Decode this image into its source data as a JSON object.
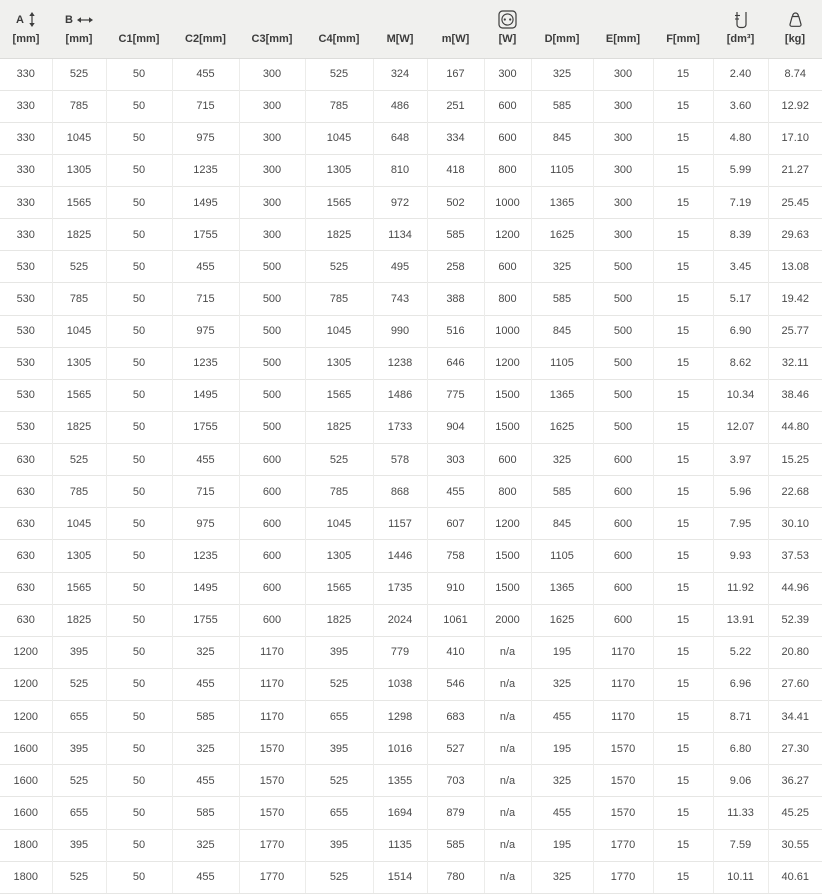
{
  "colors": {
    "header_bg": "#f0f0ee",
    "row_bg": "#ffffff",
    "grid_line": "#e6e6e4",
    "header_text": "#3c3c3c",
    "body_text": "#4a4a4a"
  },
  "header": {
    "cols": [
      {
        "letter": "A",
        "unit": "[mm]",
        "icon": "vertical-double-arrow-icon"
      },
      {
        "letter": "B",
        "unit": "[mm]",
        "icon": "horizontal-double-arrow-icon"
      },
      {
        "label": "C1[mm]"
      },
      {
        "label": "C2[mm]"
      },
      {
        "label": "C3[mm]"
      },
      {
        "label": "C4[mm]"
      },
      {
        "label": "M[W]"
      },
      {
        "label": "m[W]"
      },
      {
        "unit": "[W]",
        "icon": "power-socket-icon"
      },
      {
        "label": "D[mm]"
      },
      {
        "label": "E[mm]"
      },
      {
        "label": "F[mm]"
      },
      {
        "unit": "[dm³]",
        "icon": "measuring-container-icon"
      },
      {
        "unit": "[kg]",
        "icon": "weight-bag-icon"
      }
    ]
  },
  "chart_data": {
    "type": "table",
    "columns": [
      "A [mm]",
      "B [mm]",
      "C1 [mm]",
      "C2 [mm]",
      "C3 [mm]",
      "C4 [mm]",
      "M [W]",
      "m [W]",
      "socket [W]",
      "D [mm]",
      "E [mm]",
      "F [mm]",
      "volume [dm³]",
      "weight [kg]"
    ],
    "rows": [
      [
        "330",
        "525",
        "50",
        "455",
        "300",
        "525",
        "324",
        "167",
        "300",
        "325",
        "300",
        "15",
        "2.40",
        "8.74"
      ],
      [
        "330",
        "785",
        "50",
        "715",
        "300",
        "785",
        "486",
        "251",
        "600",
        "585",
        "300",
        "15",
        "3.60",
        "12.92"
      ],
      [
        "330",
        "1045",
        "50",
        "975",
        "300",
        "1045",
        "648",
        "334",
        "600",
        "845",
        "300",
        "15",
        "4.80",
        "17.10"
      ],
      [
        "330",
        "1305",
        "50",
        "1235",
        "300",
        "1305",
        "810",
        "418",
        "800",
        "1105",
        "300",
        "15",
        "5.99",
        "21.27"
      ],
      [
        "330",
        "1565",
        "50",
        "1495",
        "300",
        "1565",
        "972",
        "502",
        "1000",
        "1365",
        "300",
        "15",
        "7.19",
        "25.45"
      ],
      [
        "330",
        "1825",
        "50",
        "1755",
        "300",
        "1825",
        "1134",
        "585",
        "1200",
        "1625",
        "300",
        "15",
        "8.39",
        "29.63"
      ],
      [
        "530",
        "525",
        "50",
        "455",
        "500",
        "525",
        "495",
        "258",
        "600",
        "325",
        "500",
        "15",
        "3.45",
        "13.08"
      ],
      [
        "530",
        "785",
        "50",
        "715",
        "500",
        "785",
        "743",
        "388",
        "800",
        "585",
        "500",
        "15",
        "5.17",
        "19.42"
      ],
      [
        "530",
        "1045",
        "50",
        "975",
        "500",
        "1045",
        "990",
        "516",
        "1000",
        "845",
        "500",
        "15",
        "6.90",
        "25.77"
      ],
      [
        "530",
        "1305",
        "50",
        "1235",
        "500",
        "1305",
        "1238",
        "646",
        "1200",
        "1105",
        "500",
        "15",
        "8.62",
        "32.11"
      ],
      [
        "530",
        "1565",
        "50",
        "1495",
        "500",
        "1565",
        "1486",
        "775",
        "1500",
        "1365",
        "500",
        "15",
        "10.34",
        "38.46"
      ],
      [
        "530",
        "1825",
        "50",
        "1755",
        "500",
        "1825",
        "1733",
        "904",
        "1500",
        "1625",
        "500",
        "15",
        "12.07",
        "44.80"
      ],
      [
        "630",
        "525",
        "50",
        "455",
        "600",
        "525",
        "578",
        "303",
        "600",
        "325",
        "600",
        "15",
        "3.97",
        "15.25"
      ],
      [
        "630",
        "785",
        "50",
        "715",
        "600",
        "785",
        "868",
        "455",
        "800",
        "585",
        "600",
        "15",
        "5.96",
        "22.68"
      ],
      [
        "630",
        "1045",
        "50",
        "975",
        "600",
        "1045",
        "1157",
        "607",
        "1200",
        "845",
        "600",
        "15",
        "7.95",
        "30.10"
      ],
      [
        "630",
        "1305",
        "50",
        "1235",
        "600",
        "1305",
        "1446",
        "758",
        "1500",
        "1105",
        "600",
        "15",
        "9.93",
        "37.53"
      ],
      [
        "630",
        "1565",
        "50",
        "1495",
        "600",
        "1565",
        "1735",
        "910",
        "1500",
        "1365",
        "600",
        "15",
        "11.92",
        "44.96"
      ],
      [
        "630",
        "1825",
        "50",
        "1755",
        "600",
        "1825",
        "2024",
        "1061",
        "2000",
        "1625",
        "600",
        "15",
        "13.91",
        "52.39"
      ],
      [
        "1200",
        "395",
        "50",
        "325",
        "1170",
        "395",
        "779",
        "410",
        "n/a",
        "195",
        "1170",
        "15",
        "5.22",
        "20.80"
      ],
      [
        "1200",
        "525",
        "50",
        "455",
        "1170",
        "525",
        "1038",
        "546",
        "n/a",
        "325",
        "1170",
        "15",
        "6.96",
        "27.60"
      ],
      [
        "1200",
        "655",
        "50",
        "585",
        "1170",
        "655",
        "1298",
        "683",
        "n/a",
        "455",
        "1170",
        "15",
        "8.71",
        "34.41"
      ],
      [
        "1600",
        "395",
        "50",
        "325",
        "1570",
        "395",
        "1016",
        "527",
        "n/a",
        "195",
        "1570",
        "15",
        "6.80",
        "27.30"
      ],
      [
        "1600",
        "525",
        "50",
        "455",
        "1570",
        "525",
        "1355",
        "703",
        "n/a",
        "325",
        "1570",
        "15",
        "9.06",
        "36.27"
      ],
      [
        "1600",
        "655",
        "50",
        "585",
        "1570",
        "655",
        "1694",
        "879",
        "n/a",
        "455",
        "1570",
        "15",
        "11.33",
        "45.25"
      ],
      [
        "1800",
        "395",
        "50",
        "325",
        "1770",
        "395",
        "1135",
        "585",
        "n/a",
        "195",
        "1770",
        "15",
        "7.59",
        "30.55"
      ],
      [
        "1800",
        "525",
        "50",
        "455",
        "1770",
        "525",
        "1514",
        "780",
        "n/a",
        "325",
        "1770",
        "15",
        "10.11",
        "40.61"
      ]
    ]
  }
}
